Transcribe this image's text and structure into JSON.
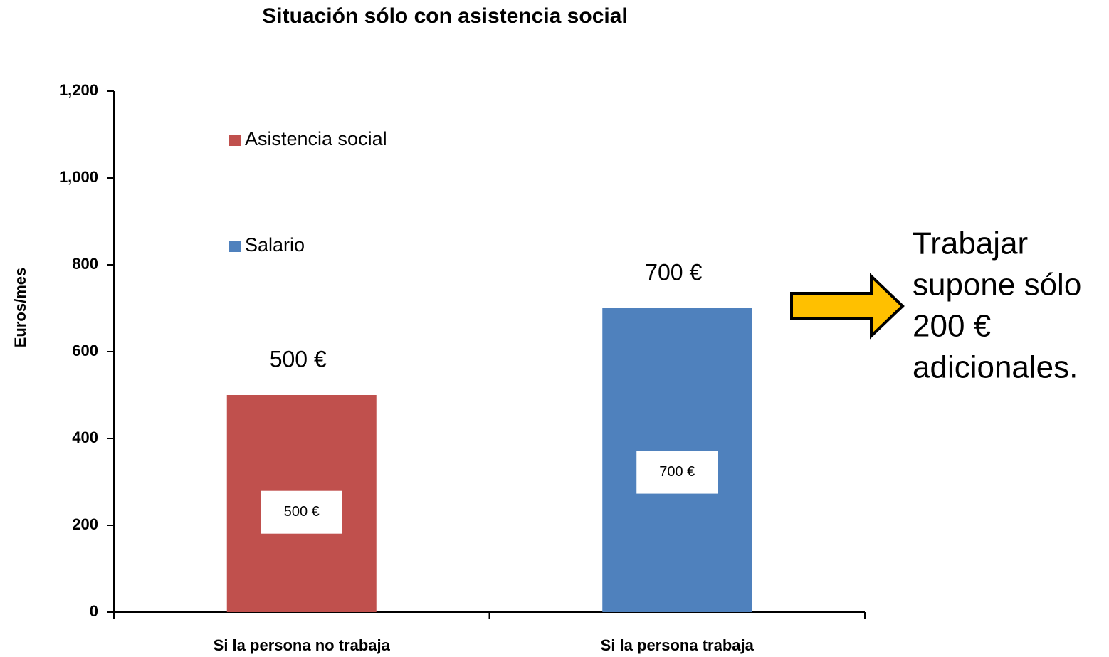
{
  "chart_data": {
    "type": "stacked_bar",
    "title": "Situación sólo con asistencia social",
    "y_label": "Euros/mes",
    "categories": [
      "Si la persona no trabaja",
      "Si la persona  trabaja"
    ],
    "series": [
      {
        "name": "Asistencia social",
        "color": "#c0504d",
        "values": [
          500,
          null
        ],
        "value_labels": [
          "500 €",
          null
        ]
      },
      {
        "name": "Salario",
        "color": "#4f81bd",
        "values": [
          null,
          700
        ],
        "value_labels": [
          null,
          "700 €"
        ]
      }
    ],
    "ylim": [
      0,
      1200
    ],
    "yticks": [
      0,
      200,
      400,
      600,
      800,
      {
        "value": 1000,
        "label": "1,000"
      },
      {
        "value": 1200,
        "label": "1,200"
      }
    ],
    "legend": "top-left",
    "grid": false,
    "total_labels": [
      "500 €",
      "700 €"
    ],
    "callout": [
      "Trabajar",
      "supone sólo",
      "200 €",
      "adicionales."
    ]
  }
}
